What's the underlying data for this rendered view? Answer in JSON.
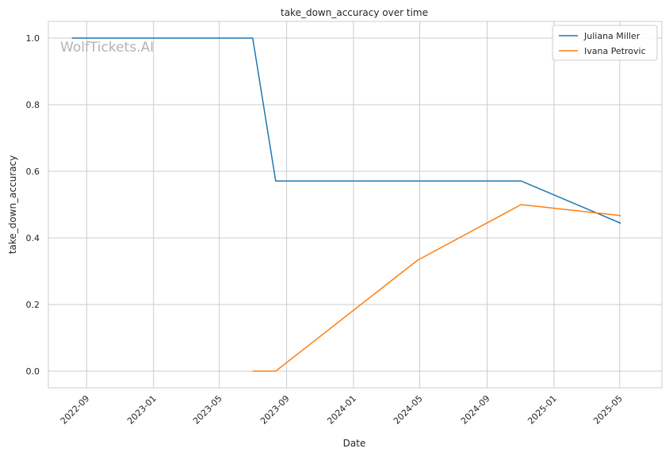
{
  "chart_data": {
    "type": "line",
    "title": "take_down_accuracy over time",
    "xlabel": "Date",
    "ylabel": "take_down_accuracy",
    "watermark": "WolfTickets.AI",
    "ylim": [
      -0.05,
      1.05
    ],
    "xlim": [
      "2022-06-23",
      "2025-07-17"
    ],
    "yticks": [
      {
        "value": 0.0,
        "label": "0.0"
      },
      {
        "value": 0.2,
        "label": "0.2"
      },
      {
        "value": 0.4,
        "label": "0.4"
      },
      {
        "value": 0.6,
        "label": "0.6"
      },
      {
        "value": 0.8,
        "label": "0.8"
      },
      {
        "value": 1.0,
        "label": "1.0"
      }
    ],
    "xticks": [
      {
        "value": "2022-09-01",
        "label": "2022-09"
      },
      {
        "value": "2023-01-01",
        "label": "2023-01"
      },
      {
        "value": "2023-05-01",
        "label": "2023-05"
      },
      {
        "value": "2023-09-01",
        "label": "2023-09"
      },
      {
        "value": "2024-01-01",
        "label": "2024-01"
      },
      {
        "value": "2024-05-01",
        "label": "2024-05"
      },
      {
        "value": "2024-09-01",
        "label": "2024-09"
      },
      {
        "value": "2025-01-01",
        "label": "2025-01"
      },
      {
        "value": "2025-05-01",
        "label": "2025-05"
      }
    ],
    "grid": true,
    "legend": "top-right",
    "series": [
      {
        "name": "Juliana Miller",
        "color": "#1f77b4",
        "points": [
          {
            "x": "2022-08-05",
            "y": 1.0
          },
          {
            "x": "2023-07-01",
            "y": 1.0
          },
          {
            "x": "2023-08-12",
            "y": 0.571
          },
          {
            "x": "2024-11-02",
            "y": 0.571
          },
          {
            "x": "2025-05-03",
            "y": 0.444
          }
        ]
      },
      {
        "name": "Ivana Petrovic",
        "color": "#ff7f0e",
        "points": [
          {
            "x": "2023-07-01",
            "y": 0.0
          },
          {
            "x": "2023-08-12",
            "y": 0.0
          },
          {
            "x": "2024-04-27",
            "y": 0.333
          },
          {
            "x": "2024-11-02",
            "y": 0.5
          },
          {
            "x": "2025-05-03",
            "y": 0.467
          }
        ]
      }
    ]
  }
}
